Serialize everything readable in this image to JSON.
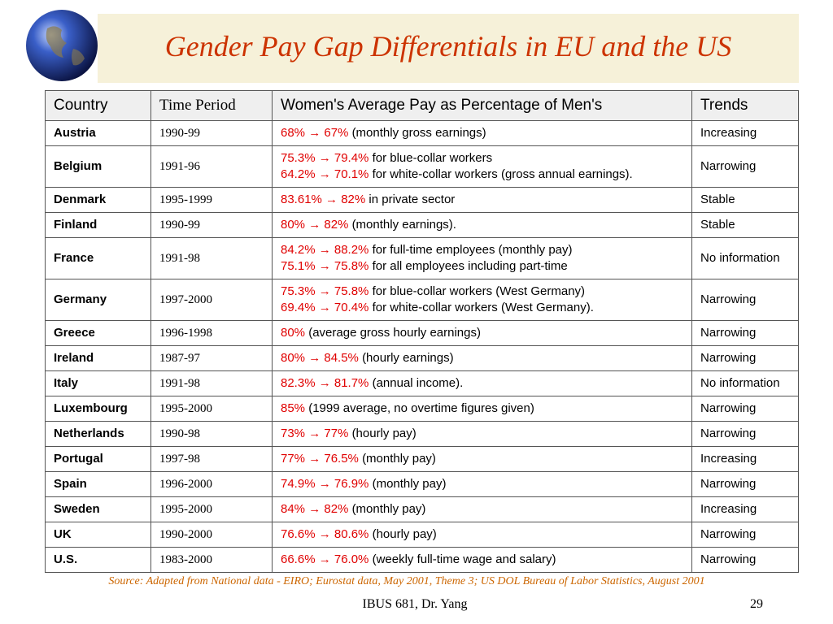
{
  "header": {
    "title": "Gender Pay Gap Differentials in EU and the US"
  },
  "table": {
    "columns": [
      "Country",
      "Time Period",
      "Women's Average Pay as Percentage of Men's",
      "Trends"
    ],
    "rows": [
      {
        "country": "Austria",
        "period": "1990-99",
        "pay": [
          {
            "highlight": "68% → 67%",
            "note": "(monthly gross earnings)"
          }
        ],
        "trend": "Increasing"
      },
      {
        "country": "Belgium",
        "period": "1991-96",
        "pay": [
          {
            "highlight": "75.3% → 79.4%",
            "note": "for blue-collar workers"
          },
          {
            "highlight": "64.2% → 70.1%",
            "note": "for white-collar workers (gross annual earnings)."
          }
        ],
        "trend": "Narrowing"
      },
      {
        "country": "Denmark",
        "period": "1995-1999",
        "pay": [
          {
            "highlight": "83.61% → 82%",
            "note": "in private sector"
          }
        ],
        "trend": "Stable"
      },
      {
        "country": "Finland",
        "period": "1990-99",
        "pay": [
          {
            "highlight": "80% → 82%",
            "note": "(monthly earnings)."
          }
        ],
        "trend": "Stable"
      },
      {
        "country": "France",
        "period": "1991-98",
        "pay": [
          {
            "highlight": "84.2% → 88.2%",
            "note": "for full-time employees (monthly pay)"
          },
          {
            "highlight": "75.1% → 75.8%",
            "note": "for all employees including part-time"
          }
        ],
        "trend": "No information"
      },
      {
        "country": "Germany",
        "period": "1997-2000",
        "pay": [
          {
            "highlight": "75.3% → 75.8%",
            "note": "for blue-collar workers (West Germany)"
          },
          {
            "highlight": "69.4% → 70.4%",
            "note": "for white-collar workers (West Germany)."
          }
        ],
        "trend": "Narrowing"
      },
      {
        "country": "Greece",
        "period": "1996-1998",
        "pay": [
          {
            "highlight": "80%",
            "note": "(average gross hourly earnings)"
          }
        ],
        "trend": "Narrowing"
      },
      {
        "country": "Ireland",
        "period": "1987-97",
        "pay": [
          {
            "highlight": "80% → 84.5%",
            "note": "(hourly earnings)"
          }
        ],
        "trend": "Narrowing"
      },
      {
        "country": "Italy",
        "period": "1991-98",
        "pay": [
          {
            "highlight": "82.3% → 81.7%",
            "note": "(annual income)."
          }
        ],
        "trend": "No information"
      },
      {
        "country": "Luxembourg",
        "period": "1995-2000",
        "pay": [
          {
            "highlight": "85%",
            "note": "(1999 average, no overtime figures given)"
          }
        ],
        "trend": "Narrowing"
      },
      {
        "country": "Netherlands",
        "period": "1990-98",
        "pay": [
          {
            "highlight": "73% → 77%",
            "note": "(hourly pay)"
          }
        ],
        "trend": "Narrowing"
      },
      {
        "country": "Portugal",
        "period": "1997-98",
        "pay": [
          {
            "highlight": "77% → 76.5%",
            "note": "(monthly pay)"
          }
        ],
        "trend": "Increasing"
      },
      {
        "country": "Spain",
        "period": "1996-2000",
        "pay": [
          {
            "highlight": "74.9% → 76.9%",
            "note": "(monthly pay)"
          }
        ],
        "trend": "Narrowing"
      },
      {
        "country": "Sweden",
        "period": "1995-2000",
        "pay": [
          {
            "highlight": "84% → 82%",
            "note": "(monthly pay)"
          }
        ],
        "trend": "Increasing"
      },
      {
        "country": "UK",
        "period": "1990-2000",
        "pay": [
          {
            "highlight": "76.6% → 80.6%",
            "note": "(hourly pay)"
          }
        ],
        "trend": "Narrowing"
      },
      {
        "country": "U.S.",
        "period": "1983-2000",
        "pay": [
          {
            "highlight": "66.6% → 76.0%",
            "note": "(weekly full-time wage and salary)"
          }
        ],
        "trend": "Narrowing"
      }
    ]
  },
  "footer": {
    "source": "Source: Adapted from National data - EIRO; Eurostat data, May 2001, Theme 3; US DOL Bureau of Labor Statistics, August 2001",
    "course": "IBUS 681, Dr. Yang",
    "page": "29"
  }
}
